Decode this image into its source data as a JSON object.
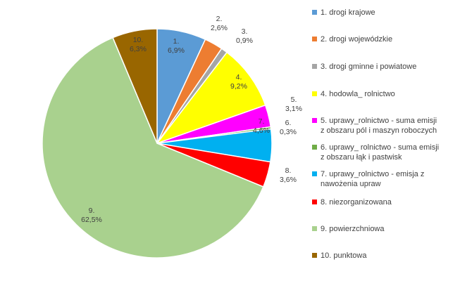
{
  "chart_data": {
    "type": "pie",
    "start_angle_deg": 0,
    "direction": "clockwise",
    "slices": [
      {
        "label": "1.",
        "value_label": "6,9%",
        "value": 6.9,
        "color": "#5B9BD5",
        "legend": "1. drogi krajowe"
      },
      {
        "label": "2.",
        "value_label": "2,6%",
        "value": 2.6,
        "color": "#ED7D31",
        "legend": "2. drogi wojewódzkie"
      },
      {
        "label": "3.",
        "value_label": "0,9%",
        "value": 0.9,
        "color": "#A5A5A5",
        "legend": "3. drogi gminne i powiatowe"
      },
      {
        "label": "4.",
        "value_label": "9,2%",
        "value": 9.2,
        "color": "#FFFF00",
        "legend": "4. hodowla_ rolnictwo"
      },
      {
        "label": "5.",
        "value_label": "3,1%",
        "value": 3.1,
        "color": "#FF00FF",
        "legend": "5. uprawy_rolnictwo - suma emisji\nz obszaru pól i maszyn roboczych"
      },
      {
        "label": "6.",
        "value_label": "0,3%",
        "value": 0.3,
        "color": "#70AD47",
        "legend": "6. uprawy_ rolnictwo - suma emisji\nz obszaru łąk i pastwisk"
      },
      {
        "label": "7.",
        "value_label": "4,6%",
        "value": 4.6,
        "color": "#00B0F0",
        "legend": "7. uprawy_rolnictwo - emisja z\nnawożenia upraw"
      },
      {
        "label": "8.",
        "value_label": "3,6%",
        "value": 3.6,
        "color": "#FF0000",
        "legend": "8. niezorganizowana"
      },
      {
        "label": "9.",
        "value_label": "62,5%",
        "value": 62.5,
        "color": "#A9D18E",
        "legend": "9. powierzchniowa"
      },
      {
        "label": "10.",
        "value_label": "6,3%",
        "value": 6.3,
        "color": "#996600",
        "legend": "10. punktowa"
      }
    ],
    "legend_position": "right"
  }
}
